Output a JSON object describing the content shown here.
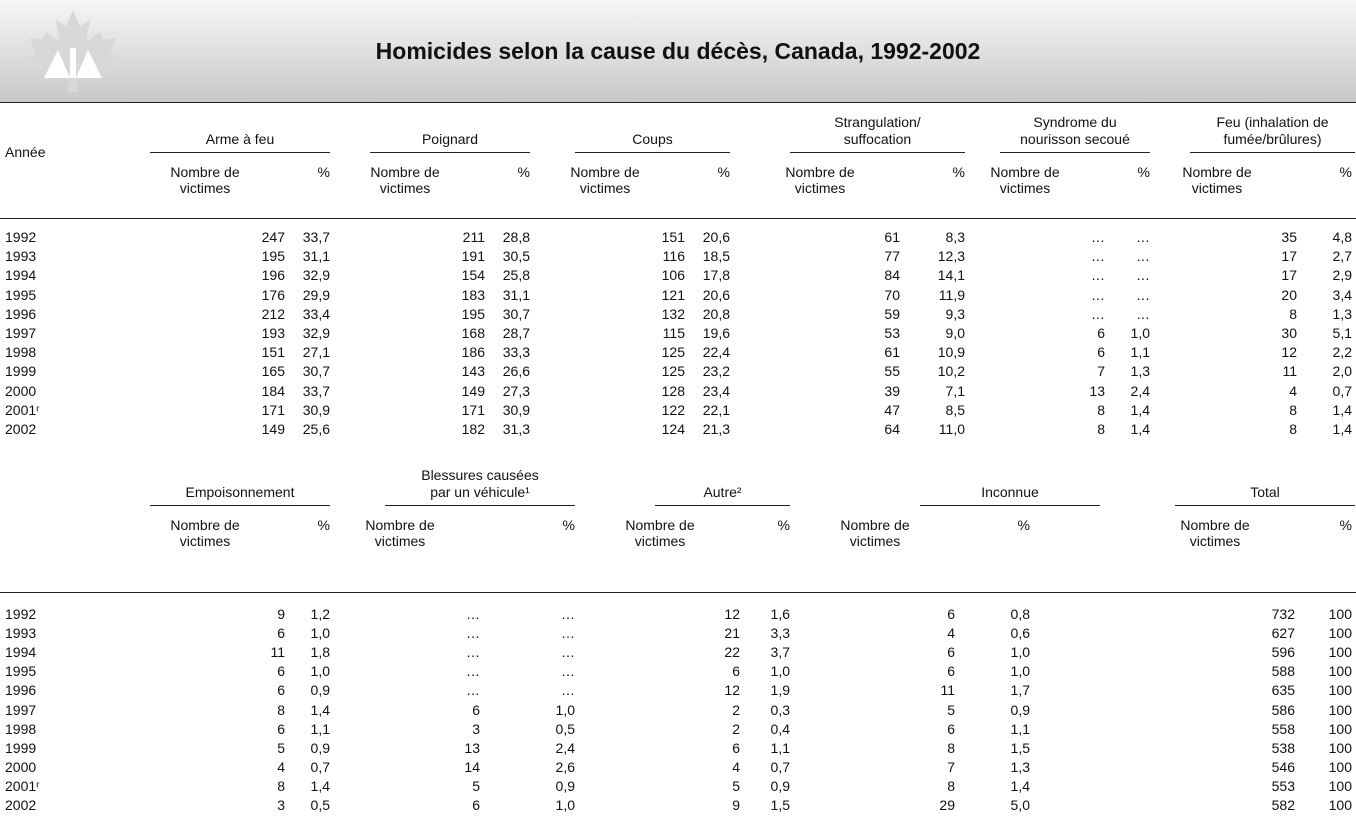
{
  "header": {
    "title": "Homicides selon la cause du décès, Canada, 1992-2002"
  },
  "tables": [
    {
      "year_label": "Année",
      "groups": [
        {
          "name": "Arme à feu",
          "columns": [
            "Nombre de victimes",
            "%"
          ]
        },
        {
          "name": "Poignard",
          "columns": [
            "Nombre de victimes",
            "%"
          ]
        },
        {
          "name": "Coups",
          "columns": [
            "Nombre de victimes",
            "%"
          ]
        },
        {
          "name": "Strangulation/ suffocation",
          "columns": [
            "Nombre de victimes",
            "%"
          ]
        },
        {
          "name": "Syndrome du nourisson secoué",
          "columns": [
            "Nombre de victimes",
            "%"
          ]
        },
        {
          "name": "Feu (inhalation de fumée/brûlures)",
          "columns": [
            "Nombre de victimes",
            "%"
          ]
        }
      ],
      "rows": [
        {
          "year": "1992",
          "cells": [
            "247",
            "33,7",
            "211",
            "28,8",
            "151",
            "20,6",
            "61",
            "8,3",
            "…",
            "…",
            "35",
            "4,8"
          ]
        },
        {
          "year": "1993",
          "cells": [
            "195",
            "31,1",
            "191",
            "30,5",
            "116",
            "18,5",
            "77",
            "12,3",
            "…",
            "…",
            "17",
            "2,7"
          ]
        },
        {
          "year": "1994",
          "cells": [
            "196",
            "32,9",
            "154",
            "25,8",
            "106",
            "17,8",
            "84",
            "14,1",
            "…",
            "…",
            "17",
            "2,9"
          ]
        },
        {
          "year": "1995",
          "cells": [
            "176",
            "29,9",
            "183",
            "31,1",
            "121",
            "20,6",
            "70",
            "11,9",
            "…",
            "…",
            "20",
            "3,4"
          ]
        },
        {
          "year": "1996",
          "cells": [
            "212",
            "33,4",
            "195",
            "30,7",
            "132",
            "20,8",
            "59",
            "9,3",
            "…",
            "…",
            "8",
            "1,3"
          ]
        },
        {
          "year": "1997",
          "cells": [
            "193",
            "32,9",
            "168",
            "28,7",
            "115",
            "19,6",
            "53",
            "9,0",
            "6",
            "1,0",
            "30",
            "5,1"
          ]
        },
        {
          "year": "1998",
          "cells": [
            "151",
            "27,1",
            "186",
            "33,3",
            "125",
            "22,4",
            "61",
            "10,9",
            "6",
            "1,1",
            "12",
            "2,2"
          ]
        },
        {
          "year": "1999",
          "cells": [
            "165",
            "30,7",
            "143",
            "26,6",
            "125",
            "23,2",
            "55",
            "10,2",
            "7",
            "1,3",
            "11",
            "2,0"
          ]
        },
        {
          "year": "2000",
          "cells": [
            "184",
            "33,7",
            "149",
            "27,3",
            "128",
            "23,4",
            "39",
            "7,1",
            "13",
            "2,4",
            "4",
            "0,7"
          ]
        },
        {
          "year": "2001ʳ",
          "cells": [
            "171",
            "30,9",
            "171",
            "30,9",
            "122",
            "22,1",
            "47",
            "8,5",
            "8",
            "1,4",
            "8",
            "1,4"
          ]
        },
        {
          "year": "2002",
          "cells": [
            "149",
            "25,6",
            "182",
            "31,3",
            "124",
            "21,3",
            "64",
            "11,0",
            "8",
            "1,4",
            "8",
            "1,4"
          ]
        }
      ]
    },
    {
      "groups": [
        {
          "name": "Empoisonnement",
          "columns": [
            "Nombre de victimes",
            "%"
          ]
        },
        {
          "name": "Blessures causées par un véhicule¹",
          "columns": [
            "Nombre de victimes",
            "%"
          ]
        },
        {
          "name": "Autre²",
          "columns": [
            "Nombre de victimes",
            "%"
          ]
        },
        {
          "name": "Inconnue",
          "columns": [
            "Nombre de victimes",
            "%"
          ]
        },
        {
          "name": "Total",
          "columns": [
            "Nombre de victimes",
            "%"
          ]
        }
      ],
      "rows": [
        {
          "year": "1992",
          "cells": [
            "9",
            "1,2",
            "…",
            "…",
            "12",
            "1,6",
            "6",
            "0,8",
            "732",
            "100"
          ]
        },
        {
          "year": "1993",
          "cells": [
            "6",
            "1,0",
            "…",
            "…",
            "21",
            "3,3",
            "4",
            "0,6",
            "627",
            "100"
          ]
        },
        {
          "year": "1994",
          "cells": [
            "11",
            "1,8",
            "…",
            "…",
            "22",
            "3,7",
            "6",
            "1,0",
            "596",
            "100"
          ]
        },
        {
          "year": "1995",
          "cells": [
            "6",
            "1,0",
            "…",
            "…",
            "6",
            "1,0",
            "6",
            "1,0",
            "588",
            "100"
          ]
        },
        {
          "year": "1996",
          "cells": [
            "6",
            "0,9",
            "…",
            "…",
            "12",
            "1,9",
            "11",
            "1,7",
            "635",
            "100"
          ]
        },
        {
          "year": "1997",
          "cells": [
            "8",
            "1,4",
            "6",
            "1,0",
            "2",
            "0,3",
            "5",
            "0,9",
            "586",
            "100"
          ]
        },
        {
          "year": "1998",
          "cells": [
            "6",
            "1,1",
            "3",
            "0,5",
            "2",
            "0,4",
            "6",
            "1,1",
            "558",
            "100"
          ]
        },
        {
          "year": "1999",
          "cells": [
            "5",
            "0,9",
            "13",
            "2,4",
            "6",
            "1,1",
            "8",
            "1,5",
            "538",
            "100"
          ]
        },
        {
          "year": "2000",
          "cells": [
            "4",
            "0,7",
            "14",
            "2,6",
            "4",
            "0,7",
            "7",
            "1,3",
            "546",
            "100"
          ]
        },
        {
          "year": "2001ʳ",
          "cells": [
            "8",
            "1,4",
            "5",
            "0,9",
            "5",
            "0,9",
            "8",
            "1,4",
            "553",
            "100"
          ]
        },
        {
          "year": "2002",
          "cells": [
            "3",
            "0,5",
            "6",
            "1,0",
            "9",
            "1,5",
            "29",
            "5,0",
            "582",
            "100"
          ]
        }
      ]
    }
  ]
}
